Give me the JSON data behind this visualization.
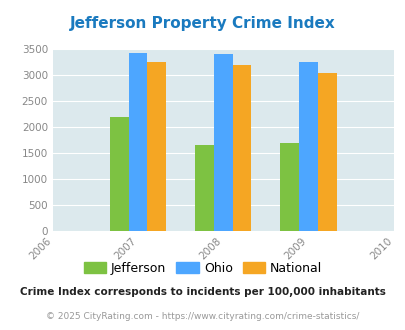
{
  "title": "Jefferson Property Crime Index",
  "title_color": "#1a7abf",
  "years": [
    2007,
    2008,
    2009
  ],
  "jefferson": [
    2200,
    1650,
    1700
  ],
  "ohio": [
    3440,
    3420,
    3250
  ],
  "national": [
    3250,
    3200,
    3040
  ],
  "bar_colors": {
    "jefferson": "#7dc242",
    "ohio": "#4da6ff",
    "national": "#f5a623"
  },
  "xlim": [
    2006,
    2010
  ],
  "ylim": [
    0,
    3500
  ],
  "yticks": [
    0,
    500,
    1000,
    1500,
    2000,
    2500,
    3000,
    3500
  ],
  "bg_color": "#dce9ed",
  "legend_labels": [
    "Jefferson",
    "Ohio",
    "National"
  ],
  "footnote1": "Crime Index corresponds to incidents per 100,000 inhabitants",
  "footnote2": "© 2025 CityRating.com - https://www.cityrating.com/crime-statistics/",
  "footnote1_color": "#222222",
  "footnote2_color": "#999999",
  "xtick_color": "#888888",
  "ytick_color": "#888888"
}
